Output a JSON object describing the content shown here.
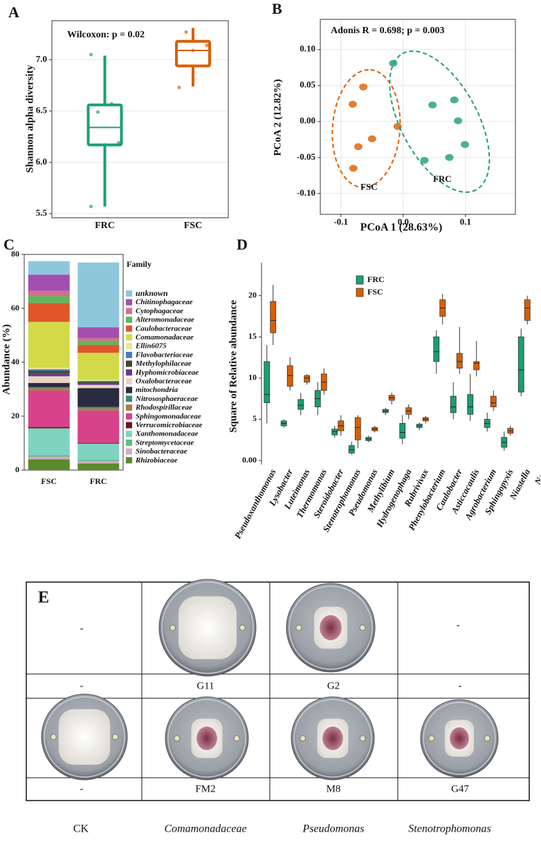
{
  "chart_data": [
    {
      "type": "box",
      "panel_label": "A",
      "annotation": "Wilcoxon: p = 0.02",
      "ylabel": "Shannon alpha diversity",
      "categories": [
        "FRC",
        "FSC"
      ],
      "colors": [
        "#1b9e77",
        "#d95f02"
      ],
      "values": [
        [
          5.57,
          6.17,
          6.34,
          6.56,
          7.04
        ],
        [
          6.74,
          6.94,
          7.09,
          7.18,
          7.31
        ]
      ],
      "points": [
        [
          5.57,
          6.17,
          6.19,
          6.49,
          6.57,
          7.05
        ],
        [
          6.73,
          7.09,
          7.14,
          7.27
        ]
      ],
      "ylim": [
        5.46,
        7.38
      ],
      "yticks": [
        5.5,
        {
          "value": 6,
          "label": "6.0"
        },
        6.5,
        {
          "value": 7,
          "label": "7.0"
        }
      ],
      "grid": true
    },
    {
      "type": "scatter",
      "panel_label": "B",
      "annotation": "Adonis R = 0.698; p = 0.003",
      "xlabel": "PCoA 1 (28.63%)",
      "ylabel": "PCoA 2 (12.82%)",
      "series": [
        {
          "name": "FSC",
          "color": "#d95f02",
          "x": [
            -0.064,
            -0.081,
            -0.009,
            -0.05,
            -0.072,
            -0.08
          ],
          "y": [
            0.048,
            0.024,
            -0.007,
            -0.024,
            -0.035,
            -0.065
          ]
        },
        {
          "name": "FRC",
          "color": "#1b9e77",
          "x": [
            -0.016,
            0.047,
            0.082,
            0.088,
            0.099,
            0.034,
            0.074
          ],
          "y": [
            0.081,
            0.023,
            0.03,
            0.001,
            -0.032,
            -0.054,
            -0.05
          ]
        }
      ],
      "xlim": [
        -0.133,
        0.18
      ],
      "ylim": [
        -0.129,
        0.142
      ],
      "xticks": [
        -0.1,
        {
          "value": 0,
          "label": "0.0"
        },
        0.1
      ],
      "yticks": [
        {
          "value": 0.1,
          "label": "0.10"
        },
        0.05,
        {
          "value": 0,
          "label": "0.00"
        },
        -0.05,
        {
          "value": -0.1,
          "label": "-0.10"
        }
      ],
      "grid": true
    },
    {
      "type": "stacked_bar",
      "panel_label": "C",
      "ylabel": "Abundance (%)",
      "legend_title": "Family",
      "categories": [
        "FSC",
        "FRC"
      ],
      "ylim": [
        0,
        80
      ],
      "yticks": [
        0,
        20,
        40,
        60,
        80
      ],
      "series": [
        {
          "name": "unknown",
          "color": "#8ec7dc",
          "values": [
            5,
            24
          ]
        },
        {
          "name": "Chitinophagaceae",
          "color": "#a24fb0",
          "values": [
            6,
            4
          ]
        },
        {
          "name": "Cytophagaceae",
          "color": "#d0708a",
          "values": [
            2,
            1
          ]
        },
        {
          "name": "Alteromonadaceae",
          "color": "#5cb85c",
          "values": [
            2.5,
            1.5
          ]
        },
        {
          "name": "Caulobacteraceae",
          "color": "#e0562a",
          "values": [
            7,
            3
          ]
        },
        {
          "name": "Comamonadaceae",
          "color": "#d2da4a",
          "values": [
            17,
            10
          ]
        },
        {
          "name": "Ellin6075",
          "color": "#eae59a",
          "values": [
            0.6,
            0.4
          ]
        },
        {
          "name": "Flavobacteriaceae",
          "color": "#4a78c8",
          "values": [
            0.6,
            0.4
          ]
        },
        {
          "name": "Methylophilaceae",
          "color": "#3a4a2a",
          "values": [
            0.8,
            0.5
          ]
        },
        {
          "name": "Hyphomicrobiaceae",
          "color": "#6a3a8a",
          "values": [
            1.2,
            0.6
          ]
        },
        {
          "name": "Oxalobacteraceae",
          "color": "#e8d4c4",
          "values": [
            2.5,
            1.2
          ]
        },
        {
          "name": "mitochondria",
          "color": "#2a2a40",
          "values": [
            1.5,
            7
          ]
        },
        {
          "name": "Nitrososphaeraceae",
          "color": "#3a8a7a",
          "values": [
            0.5,
            0.5
          ]
        },
        {
          "name": "Rhodospirillaceae",
          "color": "#b07a40",
          "values": [
            0.8,
            0.8
          ]
        },
        {
          "name": "Sphingomonadaceae",
          "color": "#d8428a",
          "values": [
            13.5,
            12
          ]
        },
        {
          "name": "Verrucomicrobiaceae",
          "color": "#6a1a1a",
          "values": [
            0.5,
            0.3
          ]
        },
        {
          "name": "Xanthomonadaceae",
          "color": "#7fd3bf",
          "values": [
            10,
            6
          ]
        },
        {
          "name": "Streptomycetaceae",
          "color": "#5cc07a",
          "values": [
            0.5,
            0.5
          ]
        },
        {
          "name": "Sinobacteraceae",
          "color": "#d8a8cc",
          "values": [
            1,
            0.8
          ]
        },
        {
          "name": "Rhizobiaceae",
          "color": "#5a8a2a",
          "values": [
            4,
            2.5
          ]
        }
      ]
    },
    {
      "type": "grouped_box",
      "panel_label": "D",
      "ylabel": "Square of Relative abundance",
      "categories": [
        "Pseudoxanthomonas",
        "Lysobacter",
        "Luteimonas",
        "Thermomonas",
        "Steroidobacter",
        "Stenotrophomonas",
        "Pseudomonas",
        "Methylibium",
        "Hydrogenophaga",
        "Rubrivivax",
        "Phenylobacterium",
        "Caulobacter",
        "Asticcacaulis",
        "Agrobacterium",
        "Sphingopyxis",
        "Niastella",
        "Nan"
      ],
      "ylim": [
        -0.5,
        24
      ],
      "yticks": [
        {
          "value": 0,
          "label": "0.00"
        },
        5,
        10,
        15,
        20
      ],
      "series": [
        {
          "name": "FRC",
          "color": "#1b9e77",
          "values": [
            [
              4.5,
              7,
              8,
              12,
              14
            ],
            [
              4,
              4.2,
              4.5,
              4.8,
              5
            ],
            [
              5.5,
              6.2,
              6.7,
              7.4,
              8.2
            ],
            [
              5.5,
              6.5,
              7.5,
              8.5,
              9.5
            ],
            [
              2.8,
              3.1,
              3.5,
              3.8,
              4.2
            ],
            [
              0.7,
              0.9,
              1.3,
              1.8,
              2.3
            ],
            [
              2.2,
              2.4,
              2.6,
              2.8,
              3
            ],
            [
              5.5,
              5.8,
              6,
              6.2,
              6.4
            ],
            [
              2,
              2.7,
              3.4,
              4.5,
              5.5
            ],
            [
              3.7,
              4,
              4.2,
              4.4,
              4.6
            ],
            [
              10.5,
              12,
              13.2,
              15,
              15.8
            ],
            [
              5,
              5.8,
              6.5,
              7.8,
              9.5
            ],
            [
              4.8,
              5.6,
              6.5,
              8,
              10.5
            ],
            [
              3.5,
              4,
              4.5,
              5,
              5.8
            ],
            [
              1.2,
              1.6,
              2.2,
              2.8,
              3.5
            ],
            [
              7.8,
              8.3,
              11,
              15,
              16
            ],
            null
          ]
        },
        {
          "name": "FSC",
          "color": "#d95f02",
          "values": [
            [
              14,
              15.5,
              17,
              19.3,
              21.3
            ],
            [
              8.5,
              9,
              10.3,
              11.5,
              12.5
            ],
            [
              9.2,
              9.5,
              10,
              10.3,
              10.5
            ],
            [
              8,
              8.5,
              9.5,
              10.5,
              11.2
            ],
            [
              3,
              3.6,
              4.2,
              4.8,
              5.5
            ],
            [
              1.5,
              2.5,
              4,
              5.2,
              5.5
            ],
            [
              3.4,
              3.6,
              3.8,
              4,
              4.2
            ],
            [
              6.8,
              7.3,
              7.6,
              7.9,
              8.2
            ],
            [
              5,
              5.6,
              6,
              6.4,
              6.8
            ],
            [
              4.5,
              4.8,
              5,
              5.2,
              5.4
            ],
            [
              16.5,
              17.5,
              18.5,
              19.5,
              20.2
            ],
            [
              10.5,
              11.2,
              12,
              13,
              16.2
            ],
            [
              10.2,
              11,
              11.8,
              12,
              14.5
            ],
            [
              6,
              6.5,
              7,
              7.8,
              8.5
            ],
            [
              3,
              3.3,
              3.6,
              3.9,
              4.2
            ],
            [
              16.5,
              17,
              18.5,
              19.5,
              20
            ],
            null
          ]
        }
      ],
      "legend": "top"
    }
  ],
  "table": {
    "panel_label": "E",
    "blank_cells": [
      "-",
      "-"
    ],
    "rows": [
      [
        "-",
        "G11",
        "G2",
        "-"
      ],
      [
        "-",
        "FM2",
        "M8",
        "G47"
      ]
    ],
    "footer": [
      "CK",
      "Comamonadaceae",
      "Pseudomonas",
      "Stenotrophomonas"
    ]
  }
}
